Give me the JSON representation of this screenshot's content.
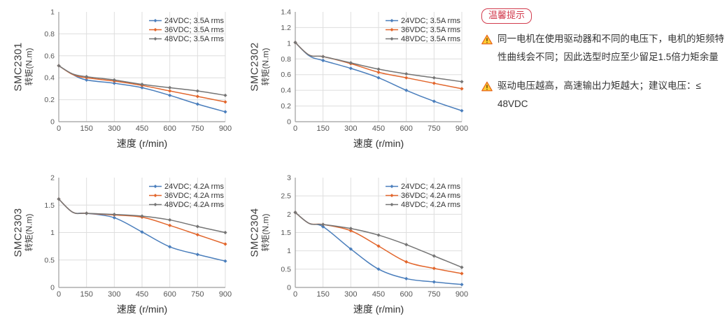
{
  "notes_panel": {
    "badge": "温馨提示",
    "badge_color": "#d23c4e",
    "warning_icon": "warning-triangle-icon",
    "warning_icon_colors": {
      "fill": "#ffcc33",
      "border": "#e8671b",
      "mark": "#5a3a00"
    },
    "notes": [
      "同一电机在使用驱动器和不同的电压下，电机的矩频特性曲线会不同；因此选型时应至少留足1.5倍力矩余量",
      "驱动电压越高，高速输出力矩越大；建议电压：≤ 48VDC"
    ]
  },
  "chart_data": [
    {
      "type": "line",
      "model": "SMC2301",
      "ylabel": "转矩(N.m)",
      "xlabel": "速度 (r/min)",
      "ylim": [
        0,
        1
      ],
      "yticks": [
        0,
        0.2,
        0.4,
        0.6,
        0.8,
        1
      ],
      "xticks": [
        0,
        150,
        300,
        450,
        600,
        750,
        900
      ],
      "grid": true,
      "legend_position": "top-right",
      "x": [
        0,
        75,
        150,
        300,
        450,
        600,
        750,
        900
      ],
      "marker_x": [
        0,
        150,
        300,
        450,
        600,
        750,
        900
      ],
      "series": [
        {
          "name": "24VDC; 3.5A rms",
          "color": "#4a7ebc",
          "values": [
            0.51,
            0.43,
            0.38,
            0.35,
            0.31,
            0.24,
            0.16,
            0.09
          ]
        },
        {
          "name": "36VDC; 3.5A rms",
          "color": "#e2662c",
          "values": [
            0.51,
            0.43,
            0.4,
            0.37,
            0.33,
            0.28,
            0.23,
            0.18
          ]
        },
        {
          "name": "48VDC; 3.5A rms",
          "color": "#757575",
          "values": [
            0.51,
            0.435,
            0.41,
            0.38,
            0.34,
            0.31,
            0.28,
            0.24
          ]
        }
      ]
    },
    {
      "type": "line",
      "model": "SMC2302",
      "ylabel": "转矩(N.m)",
      "xlabel": "速度 (r/min)",
      "ylim": [
        0,
        1.4
      ],
      "yticks": [
        0,
        0.2,
        0.4,
        0.6,
        0.8,
        1,
        1.2,
        1.4
      ],
      "xticks": [
        0,
        150,
        300,
        450,
        600,
        750,
        900
      ],
      "grid": true,
      "legend_position": "top-right",
      "x": [
        0,
        75,
        150,
        300,
        450,
        600,
        750,
        900
      ],
      "marker_x": [
        0,
        150,
        300,
        450,
        600,
        750,
        900
      ],
      "series": [
        {
          "name": "24VDC; 3.5A rms",
          "color": "#4a7ebc",
          "values": [
            1.01,
            0.84,
            0.78,
            0.68,
            0.56,
            0.4,
            0.26,
            0.14
          ]
        },
        {
          "name": "36VDC; 3.5A rms",
          "color": "#e2662c",
          "values": [
            1.01,
            0.85,
            0.83,
            0.74,
            0.63,
            0.56,
            0.49,
            0.42
          ]
        },
        {
          "name": "48VDC; 3.5A rms",
          "color": "#757575",
          "values": [
            1.01,
            0.85,
            0.83,
            0.75,
            0.67,
            0.61,
            0.56,
            0.51
          ]
        }
      ]
    },
    {
      "type": "line",
      "model": "SMC2303",
      "ylabel": "转矩(N.m)",
      "xlabel": "速度 (r/min)",
      "ylim": [
        0,
        2
      ],
      "yticks": [
        0,
        0.5,
        1,
        1.5,
        2
      ],
      "xticks": [
        0,
        150,
        300,
        450,
        600,
        750,
        900
      ],
      "grid": true,
      "legend_position": "top-right",
      "x": [
        0,
        75,
        150,
        300,
        450,
        600,
        750,
        900
      ],
      "marker_x": [
        0,
        150,
        300,
        450,
        600,
        750,
        900
      ],
      "series": [
        {
          "name": "24VDC; 4.2A rms",
          "color": "#4a7ebc",
          "values": [
            1.61,
            1.37,
            1.35,
            1.27,
            1.01,
            0.74,
            0.6,
            0.48
          ]
        },
        {
          "name": "36VDC; 4.2A rms",
          "color": "#e2662c",
          "values": [
            1.61,
            1.37,
            1.35,
            1.32,
            1.28,
            1.13,
            0.96,
            0.79
          ]
        },
        {
          "name": "48VDC; 4.2A rms",
          "color": "#757575",
          "values": [
            1.61,
            1.37,
            1.35,
            1.33,
            1.3,
            1.23,
            1.11,
            1.0
          ]
        }
      ]
    },
    {
      "type": "line",
      "model": "SMC2304",
      "ylabel": "转矩(N.m)",
      "xlabel": "速度 (r/min)",
      "ylim": [
        0,
        3
      ],
      "yticks": [
        0,
        0.5,
        1,
        1.5,
        2,
        2.5,
        3
      ],
      "xticks": [
        0,
        150,
        300,
        450,
        600,
        750,
        900
      ],
      "grid": true,
      "legend_position": "top-right",
      "x": [
        0,
        75,
        150,
        300,
        450,
        600,
        750,
        900
      ],
      "marker_x": [
        0,
        150,
        300,
        450,
        600,
        750,
        900
      ],
      "series": [
        {
          "name": "24VDC; 4.2A rms",
          "color": "#4a7ebc",
          "values": [
            2.05,
            1.75,
            1.66,
            1.05,
            0.5,
            0.24,
            0.15,
            0.08
          ]
        },
        {
          "name": "36VDC; 4.2A rms",
          "color": "#e2662c",
          "values": [
            2.05,
            1.75,
            1.72,
            1.55,
            1.13,
            0.7,
            0.52,
            0.38
          ]
        },
        {
          "name": "48VDC; 4.2A rms",
          "color": "#757575",
          "values": [
            2.05,
            1.75,
            1.72,
            1.61,
            1.43,
            1.17,
            0.86,
            0.55
          ]
        }
      ]
    }
  ]
}
